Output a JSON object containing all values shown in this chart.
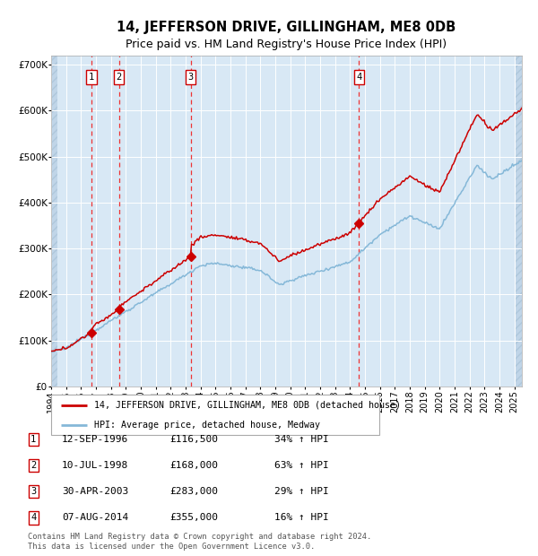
{
  "title": "14, JEFFERSON DRIVE, GILLINGHAM, ME8 0DB",
  "subtitle": "Price paid vs. HM Land Registry's House Price Index (HPI)",
  "xlim": [
    1994.0,
    2025.5
  ],
  "ylim": [
    0,
    720000
  ],
  "yticks": [
    0,
    100000,
    200000,
    300000,
    400000,
    500000,
    600000,
    700000
  ],
  "ytick_labels": [
    "£0",
    "£100K",
    "£200K",
    "£300K",
    "£400K",
    "£500K",
    "£600K",
    "£700K"
  ],
  "background_color": "#d8e8f5",
  "grid_color": "#ffffff",
  "sale_points": [
    {
      "year": 1996.71,
      "price": 116500,
      "label": "1"
    },
    {
      "year": 1998.53,
      "price": 168000,
      "label": "2"
    },
    {
      "year": 2003.33,
      "price": 283000,
      "label": "3"
    },
    {
      "year": 2014.6,
      "price": 355000,
      "label": "4"
    }
  ],
  "legend_line1": "14, JEFFERSON DRIVE, GILLINGHAM, ME8 0DB (detached house)",
  "legend_line2": "HPI: Average price, detached house, Medway",
  "table_rows": [
    {
      "num": "1",
      "date": "12-SEP-1996",
      "price": "£116,500",
      "change": "34% ↑ HPI"
    },
    {
      "num": "2",
      "date": "10-JUL-1998",
      "price": "£168,000",
      "change": "63% ↑ HPI"
    },
    {
      "num": "3",
      "date": "30-APR-2003",
      "price": "£283,000",
      "change": "29% ↑ HPI"
    },
    {
      "num": "4",
      "date": "07-AUG-2014",
      "price": "£355,000",
      "change": "16% ↑ HPI"
    }
  ],
  "footer": "Contains HM Land Registry data © Crown copyright and database right 2024.\nThis data is licensed under the Open Government Licence v3.0.",
  "red_color": "#cc0000",
  "blue_color": "#85b8d8",
  "dash_color": "#ee3333",
  "hatch_bg": "#c0d5e8"
}
